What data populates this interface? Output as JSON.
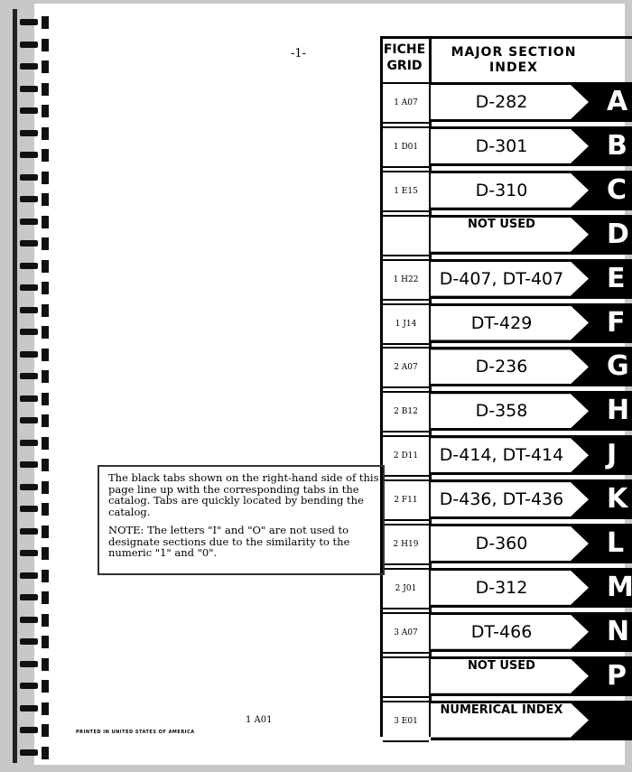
{
  "page_number": "-1-",
  "table": {
    "header_fiche": "FICHE GRID",
    "header_major": "MAJOR SECTION INDEX",
    "rows": [
      {
        "grid": "1 A07",
        "section": "D-282",
        "tab": "A"
      },
      {
        "grid": "1 D01",
        "section": "D-301",
        "tab": "B"
      },
      {
        "grid": "1 E15",
        "section": "D-310",
        "tab": "C"
      },
      {
        "grid": "",
        "section": "NOT USED",
        "tab": "D"
      },
      {
        "grid": "1 H22",
        "section": "D-407, DT-407",
        "tab": "E"
      },
      {
        "grid": "1 J14",
        "section": "DT-429",
        "tab": "F"
      },
      {
        "grid": "2 A07",
        "section": "D-236",
        "tab": "G"
      },
      {
        "grid": "2 B12",
        "section": "D-358",
        "tab": "H"
      },
      {
        "grid": "2 D11",
        "section": "D-414, DT-414",
        "tab": "J"
      },
      {
        "grid": "2 F11",
        "section": "D-436, DT-436",
        "tab": "K"
      },
      {
        "grid": "2 H19",
        "section": "D-360",
        "tab": "L"
      },
      {
        "grid": "2 J01",
        "section": "D-312",
        "tab": "M"
      },
      {
        "grid": "3 A07",
        "section": "DT-466",
        "tab": "N"
      },
      {
        "grid": "",
        "section": "NOT USED",
        "tab": "P"
      },
      {
        "grid": "3 E01",
        "section": "NUMERICAL INDEX",
        "tab": ""
      }
    ]
  },
  "note": {
    "paragraph1": "The black tabs shown on the right-hand side of this page line up with the corresponding tabs in the catalog. Tabs are quickly located by bending the catalog.",
    "paragraph2": "NOTE: The letters \"I\" and \"O\" are not used to designate sections due to the similarity to the numeric \"1\" and \"0\"."
  },
  "footer": {
    "fiche_code": "1 A01",
    "printed": "PRINTED IN UNITED STATES OF AMERICA"
  }
}
